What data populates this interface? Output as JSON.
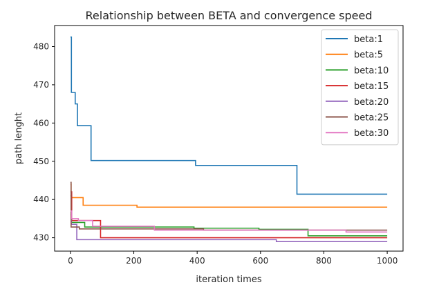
{
  "chart_data": {
    "type": "line",
    "title": "Relationship between BETA and convergence speed",
    "xlabel": "iteration times",
    "ylabel": "path lenght",
    "xlim": [
      -50,
      1050
    ],
    "ylim": [
      426.5,
      485.5
    ],
    "xticks": [
      0,
      200,
      400,
      600,
      800,
      1000
    ],
    "yticks": [
      430,
      440,
      450,
      460,
      470,
      480
    ],
    "grid": false,
    "legend_position": "top-right",
    "series": [
      {
        "name": "beta:1",
        "color": "#1f77b4",
        "points": [
          [
            0,
            482.5
          ],
          [
            3,
            482.5
          ],
          [
            3,
            468
          ],
          [
            15,
            468
          ],
          [
            15,
            465
          ],
          [
            22,
            465
          ],
          [
            22,
            459.3
          ],
          [
            65,
            459.3
          ],
          [
            65,
            450.2
          ],
          [
            395,
            450.2
          ],
          [
            395,
            448.9
          ],
          [
            715,
            448.9
          ],
          [
            715,
            441.4
          ],
          [
            1000,
            441.4
          ]
        ]
      },
      {
        "name": "beta:5",
        "color": "#ff7f0e",
        "points": [
          [
            0,
            444
          ],
          [
            2,
            444
          ],
          [
            2,
            440.5
          ],
          [
            40,
            440.5
          ],
          [
            40,
            438.5
          ],
          [
            210,
            438.5
          ],
          [
            210,
            438
          ],
          [
            1000,
            438
          ]
        ]
      },
      {
        "name": "beta:10",
        "color": "#2ca02c",
        "points": [
          [
            0,
            441
          ],
          [
            3,
            441
          ],
          [
            3,
            434
          ],
          [
            45,
            434
          ],
          [
            45,
            432.8
          ],
          [
            390,
            432.8
          ],
          [
            390,
            432.5
          ],
          [
            595,
            432.5
          ],
          [
            595,
            432.2
          ],
          [
            750,
            432.2
          ],
          [
            750,
            430.5
          ],
          [
            1000,
            430.5
          ]
        ]
      },
      {
        "name": "beta:15",
        "color": "#d62728",
        "points": [
          [
            0,
            442
          ],
          [
            4,
            442
          ],
          [
            4,
            434.5
          ],
          [
            95,
            434.5
          ],
          [
            95,
            430
          ],
          [
            1000,
            430
          ]
        ]
      },
      {
        "name": "beta:20",
        "color": "#9467bd",
        "points": [
          [
            0,
            436
          ],
          [
            3,
            436
          ],
          [
            3,
            433.5
          ],
          [
            20,
            433.5
          ],
          [
            20,
            429.5
          ],
          [
            650,
            429.5
          ],
          [
            650,
            429
          ],
          [
            1000,
            429
          ]
        ]
      },
      {
        "name": "beta:25",
        "color": "#8c564b",
        "points": [
          [
            0,
            444.5
          ],
          [
            2,
            444.5
          ],
          [
            2,
            432.8
          ],
          [
            28,
            432.8
          ],
          [
            28,
            432.3
          ],
          [
            420,
            432.3
          ],
          [
            420,
            432
          ],
          [
            1000,
            432
          ]
        ]
      },
      {
        "name": "beta:30",
        "color": "#e377c2",
        "points": [
          [
            0,
            437
          ],
          [
            4,
            437
          ],
          [
            4,
            435
          ],
          [
            25,
            435
          ],
          [
            25,
            434.5
          ],
          [
            70,
            434.5
          ],
          [
            70,
            433
          ],
          [
            265,
            433
          ],
          [
            265,
            432
          ],
          [
            870,
            432
          ],
          [
            870,
            431.5
          ],
          [
            1000,
            431.5
          ]
        ]
      }
    ]
  }
}
